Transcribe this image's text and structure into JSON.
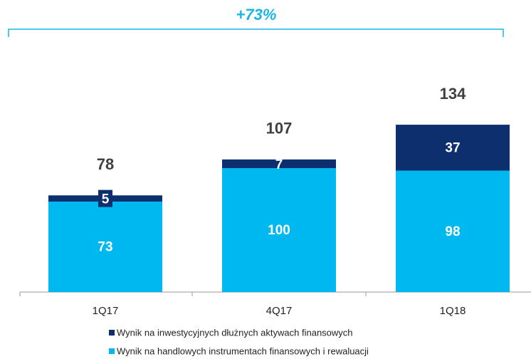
{
  "chart_data": {
    "type": "stacked_bar",
    "annotation": "+73%",
    "categories": [
      "1Q17",
      "4Q17",
      "1Q18"
    ],
    "series": [
      {
        "name": "Wynik na handlowych instrumentach finansowych i rewaluacji",
        "color": "#00b8f0",
        "values": [
          73,
          100,
          98
        ]
      },
      {
        "name": "Wynik na inwestycyjnych dłużnych aktywach finansowych",
        "color": "#0d2f6e",
        "values": [
          5,
          7,
          37
        ]
      }
    ],
    "totals": [
      78,
      107,
      134
    ]
  }
}
